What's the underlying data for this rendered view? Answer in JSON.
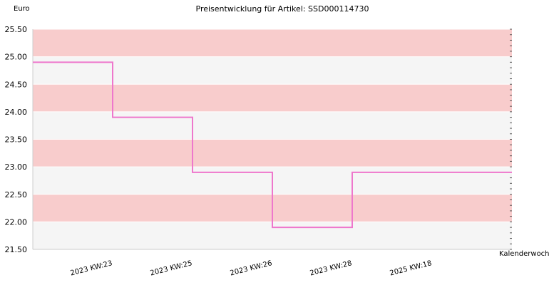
{
  "chart_data": {
    "type": "line",
    "step": true,
    "title": "Preisentwicklung für Artikel: SSD000114730",
    "ylabel": "Euro",
    "xlabel": "Kalenderwoche",
    "ylim": [
      21.5,
      25.5
    ],
    "yticks": [
      "21.50",
      "22.00",
      "22.50",
      "23.00",
      "23.50",
      "24.00",
      "24.50",
      "25.00",
      "25.50"
    ],
    "categories": [
      "2023 KW:23",
      "2023 KW:25",
      "2023 KW:26",
      "2023 KW:28",
      "2025 KW:18"
    ],
    "series": [
      {
        "values": [
          24.9,
          23.9,
          22.9,
          21.9,
          22.9
        ]
      }
    ],
    "colors": {
      "line": "#ee77cc",
      "band_pink": "#f8cccc",
      "band_light": "#f5f5f5",
      "grid": "#ffffff"
    },
    "grid": true
  }
}
